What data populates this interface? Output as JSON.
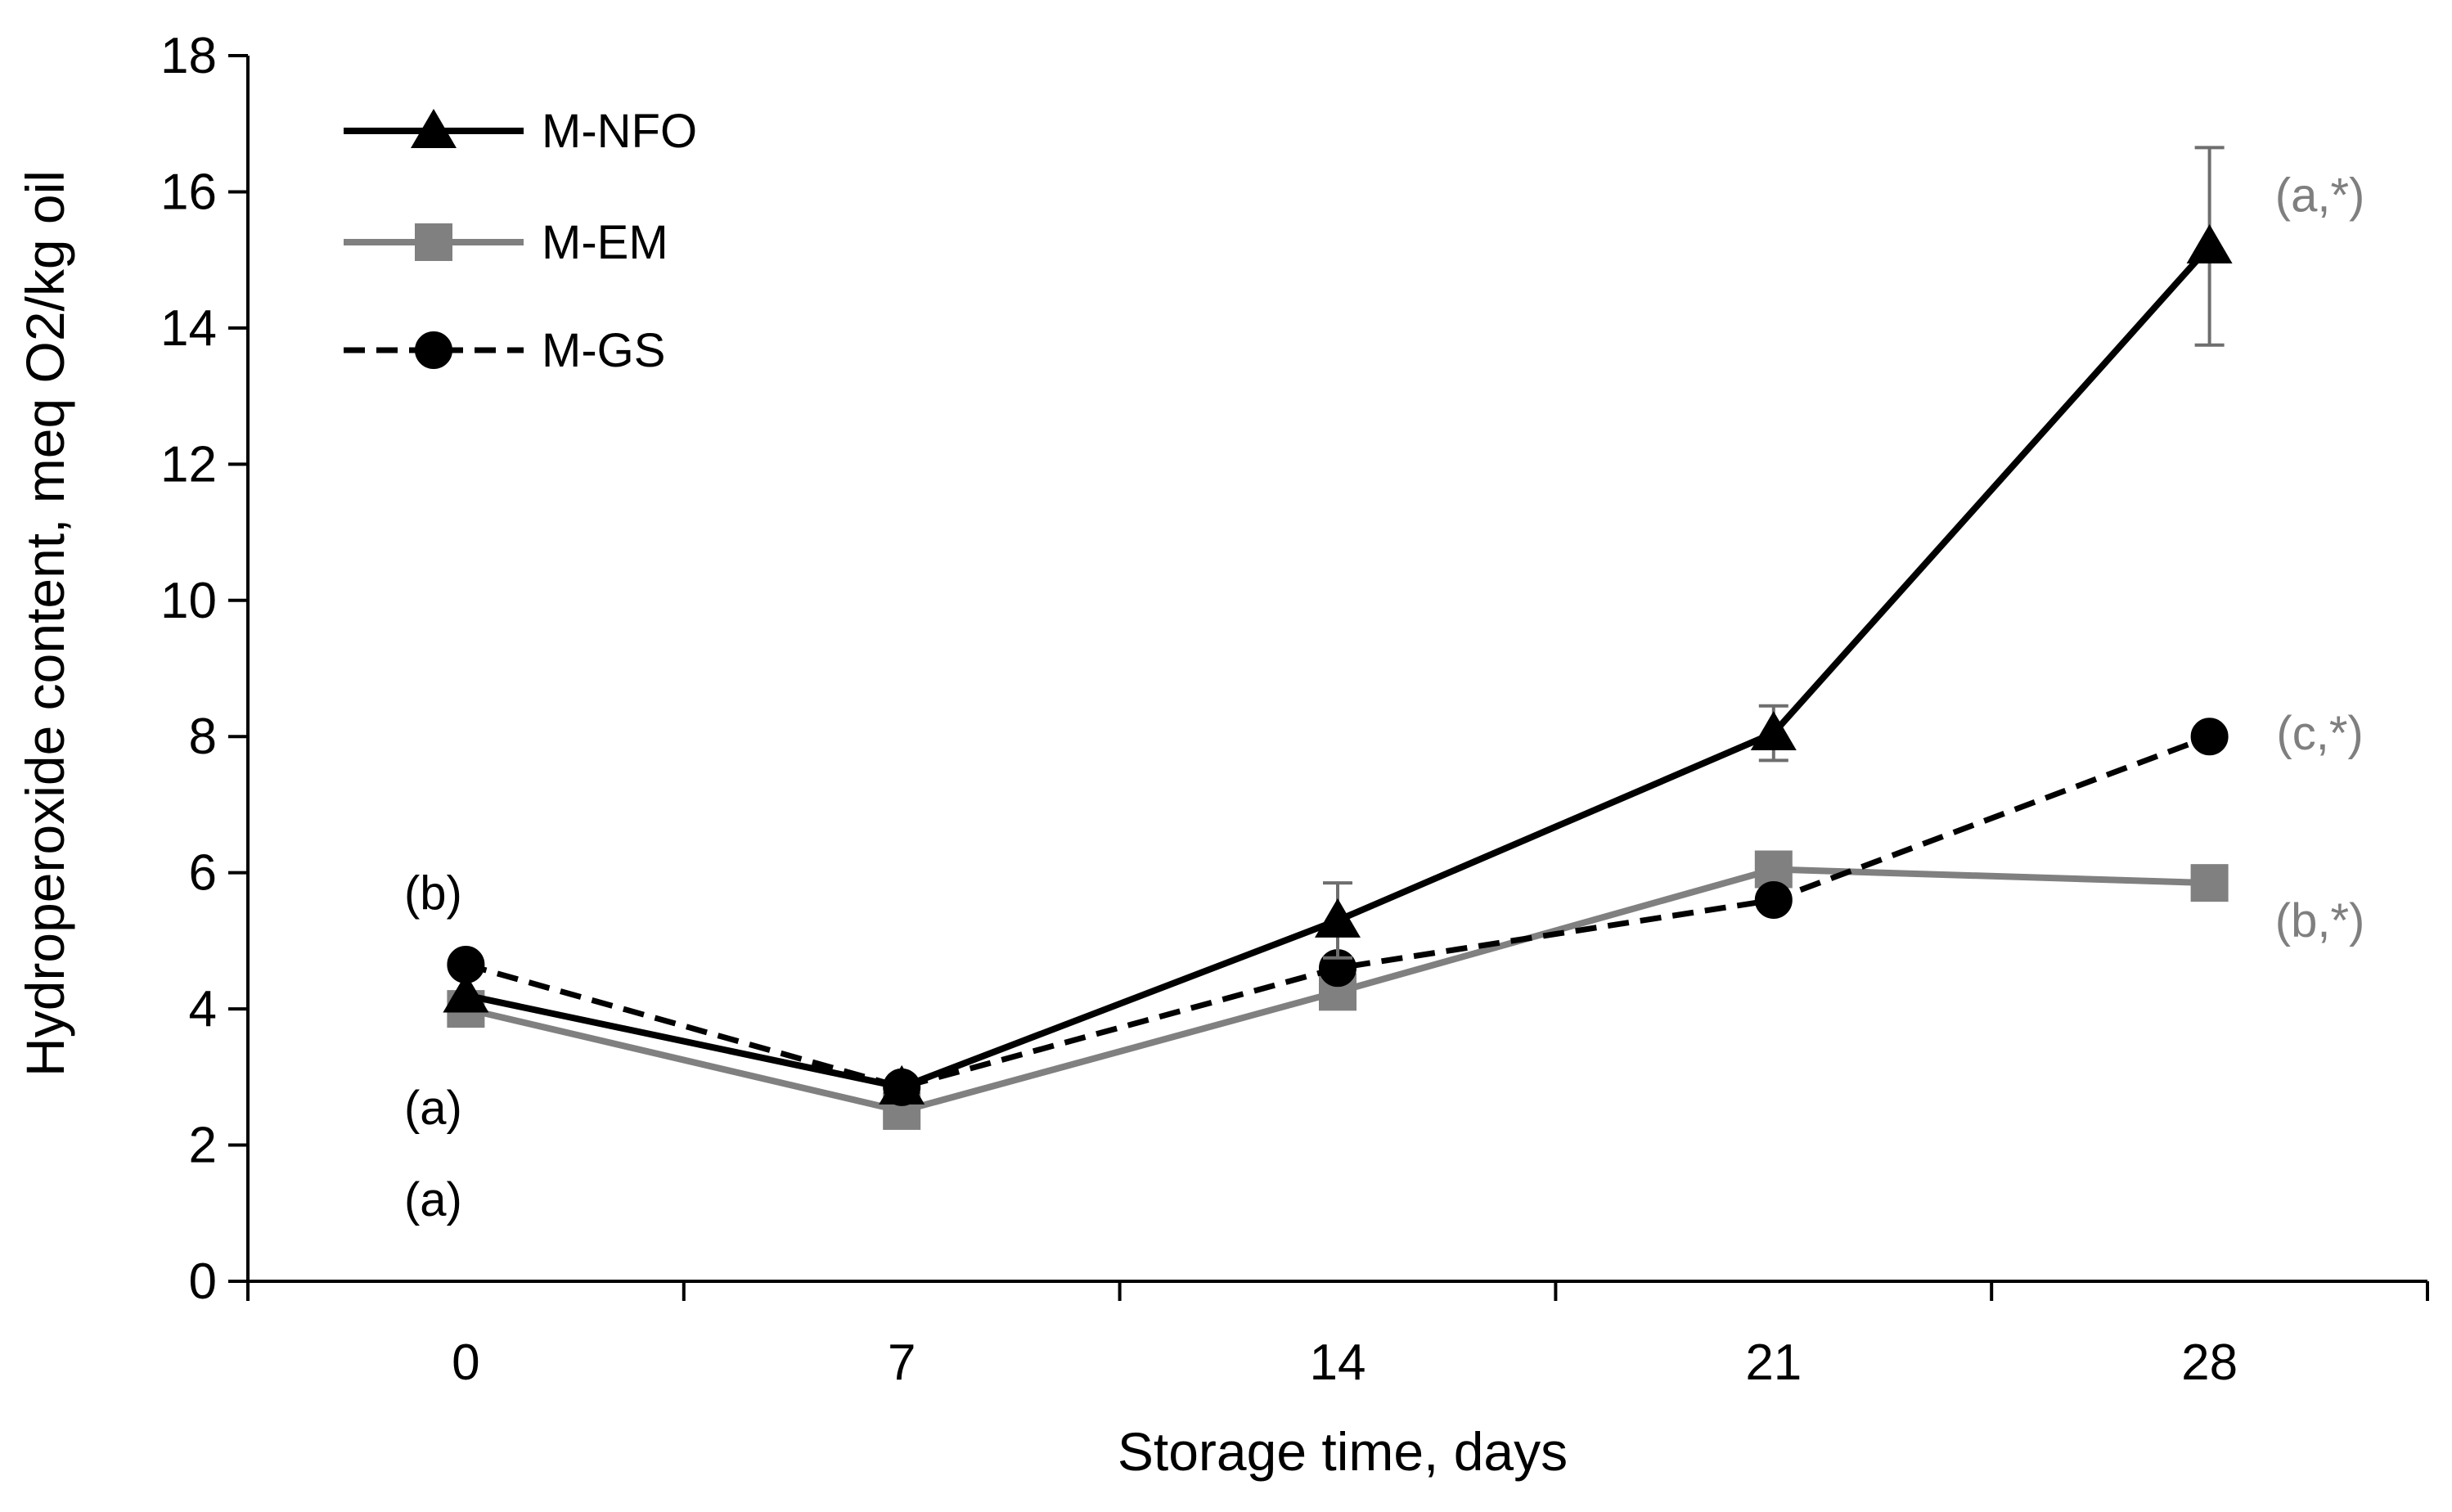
{
  "chart_data": {
    "type": "line",
    "title": "",
    "xlabel": "Storage time, days",
    "ylabel": "Hydroperoxide content, meq O2/kg oil",
    "x": [
      0,
      7,
      14,
      21,
      28
    ],
    "x_tick_labels": [
      "0",
      "7",
      "14",
      "21",
      "28"
    ],
    "ylim": [
      0,
      18
    ],
    "y_ticks": [
      0,
      2,
      4,
      6,
      8,
      10,
      12,
      14,
      16,
      18
    ],
    "grid": false,
    "legend_position": "top-left",
    "series": [
      {
        "name": "M-NFO",
        "values": [
          4.2,
          2.85,
          5.3,
          8.05,
          15.2
        ],
        "error": [
          0,
          0,
          0.55,
          0.4,
          1.45
        ],
        "color": "#000000",
        "marker": "triangle",
        "line_style": "solid"
      },
      {
        "name": "M-EM",
        "values": [
          4.0,
          2.5,
          4.25,
          6.05,
          5.85
        ],
        "error": [
          0,
          0,
          0,
          0,
          0
        ],
        "color": "#808080",
        "marker": "square",
        "line_style": "solid"
      },
      {
        "name": "M-GS",
        "values": [
          4.65,
          2.85,
          4.6,
          5.6,
          8.0
        ],
        "error": [
          0,
          0,
          0,
          0,
          0
        ],
        "color": "#000000",
        "marker": "circle",
        "line_style": "dashed"
      }
    ],
    "annotations": [
      {
        "text": "(b)",
        "x": 0,
        "y": 5.7,
        "color": "#000000"
      },
      {
        "text": "(a)",
        "x": 0,
        "y": 2.55,
        "color": "#000000"
      },
      {
        "text": "(a)",
        "x": 0,
        "y": 1.2,
        "color": "#000000"
      },
      {
        "text": "(a,*)",
        "x": 28,
        "y": 15.95,
        "color": "#7f7f7f"
      },
      {
        "text": "(c,*)",
        "x": 28,
        "y": 8.05,
        "color": "#7f7f7f"
      },
      {
        "text": "(b,*)",
        "x": 28,
        "y": 5.3,
        "color": "#7f7f7f"
      }
    ]
  }
}
